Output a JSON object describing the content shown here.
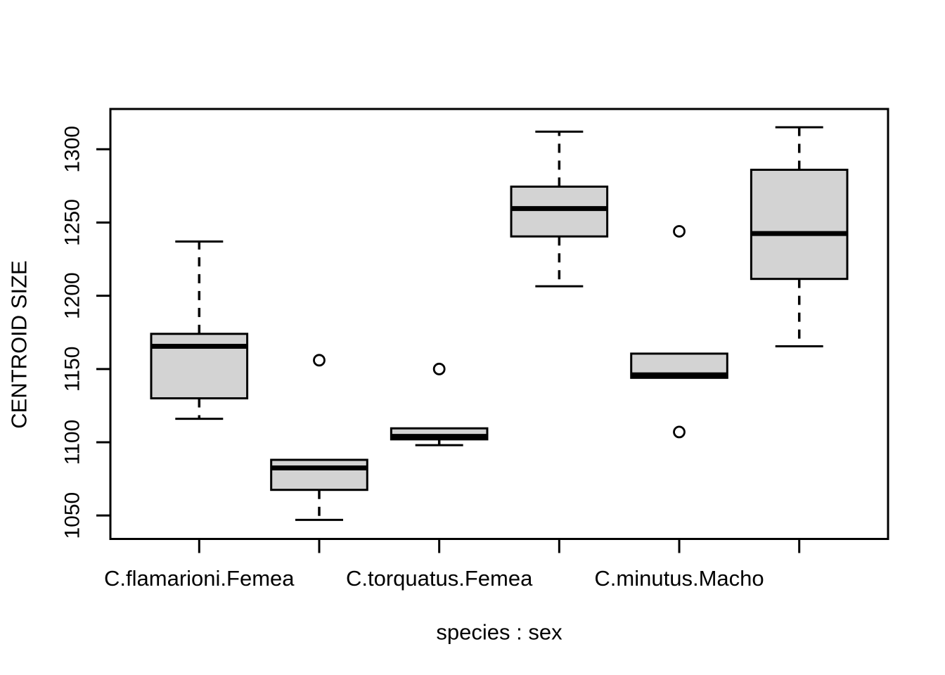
{
  "figure": {
    "background": "#ffffff",
    "text_color": "#000000"
  },
  "chart_data": {
    "type": "boxplot",
    "title": "",
    "xlabel": "species : sex",
    "ylabel": "CENTROID SIZE",
    "y_ticks": [
      1050,
      1100,
      1150,
      1200,
      1250,
      1300
    ],
    "ylim": [
      1034,
      1327.5
    ],
    "grid": "off",
    "box_fill": "#d3d3d3",
    "line_color": "#000000",
    "group_tick_labels": [
      {
        "at": 1,
        "label": "C.flamarioni.Femea"
      },
      {
        "at": 3,
        "label": "C.torquatus.Femea"
      },
      {
        "at": 5,
        "label": "C.minutus.Macho"
      }
    ],
    "boxes": [
      {
        "position": 1,
        "whisker_low": 1116,
        "q1": 1130,
        "median": 1165.5,
        "q3": 1174,
        "whisker_high": 1237,
        "outliers": []
      },
      {
        "position": 2,
        "whisker_low": 1047,
        "q1": 1067.5,
        "median": 1082.5,
        "q3": 1088,
        "whisker_high": 1088,
        "outliers": [
          1156
        ]
      },
      {
        "position": 3,
        "whisker_low": 1098,
        "q1": 1102,
        "median": 1104,
        "q3": 1109.5,
        "whisker_high": 1109.5,
        "outliers": [
          1150
        ]
      },
      {
        "position": 4,
        "whisker_low": 1206.5,
        "q1": 1240.5,
        "median": 1259.5,
        "q3": 1274.5,
        "whisker_high": 1312,
        "outliers": []
      },
      {
        "position": 5,
        "whisker_low": 1144,
        "q1": 1144,
        "median": 1146,
        "q3": 1160.5,
        "whisker_high": 1160.5,
        "outliers": [
          1244,
          1107
        ]
      },
      {
        "position": 6,
        "whisker_low": 1165.5,
        "q1": 1211.5,
        "median": 1242.5,
        "q3": 1286,
        "whisker_high": 1315,
        "outliers": []
      }
    ]
  }
}
